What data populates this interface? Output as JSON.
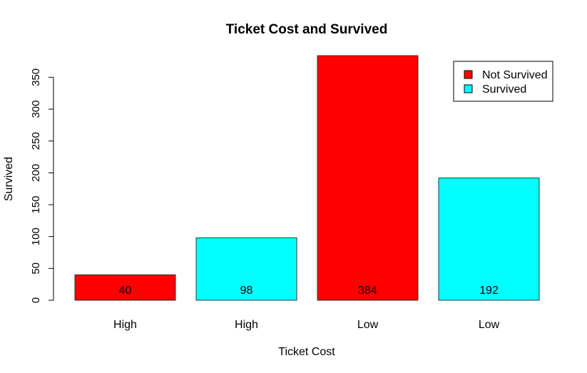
{
  "chart_data": {
    "type": "bar",
    "title": "Ticket Cost and Survived",
    "xlabel": "Ticket Cost",
    "ylabel": "Survived",
    "categories": [
      "High",
      "High",
      "Low",
      "Low"
    ],
    "values": [
      40,
      98,
      384,
      192
    ],
    "data_labels": [
      "40",
      "98",
      "384",
      "192"
    ],
    "bar_series": [
      "Not Survived",
      "Survived",
      "Not Survived",
      "Survived"
    ],
    "ylim": [
      0,
      384
    ],
    "yticks": [
      0,
      50,
      100,
      150,
      200,
      250,
      300,
      350
    ],
    "grid": false,
    "legend": {
      "position": "top-right",
      "entries": [
        {
          "name": "Not Survived",
          "color": "#ff0000"
        },
        {
          "name": "Survived",
          "color": "#00ffff"
        }
      ]
    },
    "colors": {
      "Not Survived": "#ff0000",
      "Survived": "#00ffff"
    }
  }
}
